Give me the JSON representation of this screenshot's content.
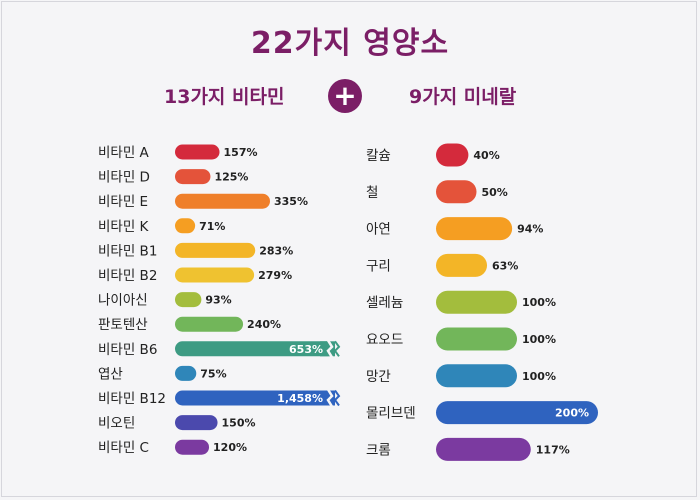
{
  "header": {
    "title": "22가지 영양소",
    "left_subtitle": "13가지 비타민",
    "plus_symbol": "+",
    "right_subtitle": "9가지 미네랄"
  },
  "colors": {
    "title": "#7b1e66"
  },
  "chart_data": [
    {
      "type": "bar",
      "orientation": "horizontal",
      "title": "13가지 비타민",
      "unit": "%",
      "categories": [
        "비타민 A",
        "비타민 D",
        "비타민 E",
        "비타민 K",
        "비타민 B1",
        "비타민 B2",
        "나이아신",
        "판토텐산",
        "비타민 B6",
        "엽산",
        "비타민 B12",
        "비오틴",
        "비타민 C"
      ],
      "values": [
        157,
        125,
        335,
        71,
        283,
        279,
        93,
        240,
        653,
        75,
        1458,
        150,
        120
      ],
      "value_labels": [
        "157%",
        "125%",
        "335%",
        "71%",
        "283%",
        "279%",
        "93%",
        "240%",
        "653%",
        "75%",
        "1,458%",
        "150%",
        "120%"
      ],
      "broken_axis": [
        false,
        false,
        false,
        false,
        false,
        false,
        false,
        false,
        true,
        false,
        true,
        false,
        false
      ],
      "bar_colors": [
        "#d42a3c",
        "#e4533a",
        "#ef7f2a",
        "#f59e22",
        "#f3b527",
        "#efc230",
        "#a3bd3d",
        "#72b65a",
        "#3d9b83",
        "#2f86b9",
        "#2f63bf",
        "#4b49ad",
        "#7b3aa0"
      ]
    },
    {
      "type": "bar",
      "orientation": "horizontal",
      "title": "9가지 미네랄",
      "unit": "%",
      "categories": [
        "칼슘",
        "철",
        "아연",
        "구리",
        "셀레늄",
        "요오드",
        "망간",
        "몰리브덴",
        "크롬"
      ],
      "values": [
        40,
        50,
        94,
        63,
        100,
        100,
        100,
        200,
        117
      ],
      "value_labels": [
        "40%",
        "50%",
        "94%",
        "63%",
        "100%",
        "100%",
        "100%",
        "200%",
        "117%"
      ],
      "bar_colors": [
        "#d42a3c",
        "#e4533a",
        "#f59e22",
        "#f3b527",
        "#a3bd3d",
        "#72b65a",
        "#2f86b9",
        "#2f63bf",
        "#7b3aa0"
      ]
    }
  ]
}
